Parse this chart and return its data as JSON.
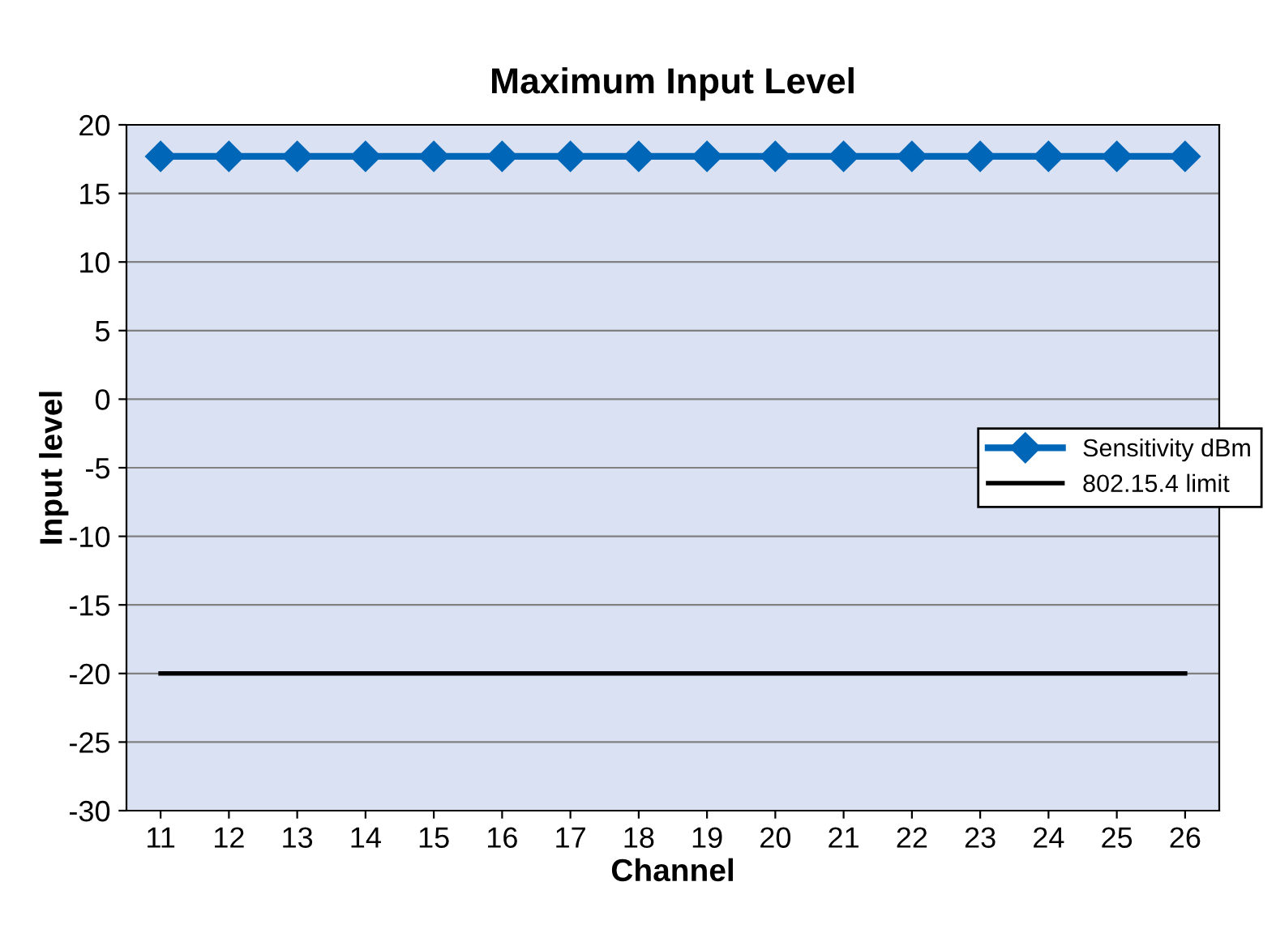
{
  "chart_data": {
    "type": "line",
    "title": "Maximum Input Level",
    "xlabel": "Channel",
    "ylabel": "Input level",
    "categories": [
      "11",
      "12",
      "13",
      "14",
      "15",
      "16",
      "17",
      "18",
      "19",
      "20",
      "21",
      "22",
      "23",
      "24",
      "25",
      "26"
    ],
    "series": [
      {
        "name": "Sensitivity dBm",
        "color": "#0066b8",
        "marker": "diamond",
        "values": [
          17.7,
          17.7,
          17.7,
          17.7,
          17.7,
          17.7,
          17.7,
          17.7,
          17.7,
          17.7,
          17.7,
          17.7,
          17.7,
          17.7,
          17.7,
          17.7
        ]
      },
      {
        "name": "802.15.4 limit",
        "color": "#000000",
        "marker": "none",
        "values": [
          -20,
          -20,
          -20,
          -20,
          -20,
          -20,
          -20,
          -20,
          -20,
          -20,
          -20,
          -20,
          -20,
          -20,
          -20,
          -20
        ]
      }
    ],
    "ylim": [
      -30,
      20
    ],
    "yticks": [
      -30,
      -25,
      -20,
      -15,
      -10,
      -5,
      0,
      5,
      10,
      15,
      20
    ],
    "grid": "y",
    "legend": "right"
  }
}
